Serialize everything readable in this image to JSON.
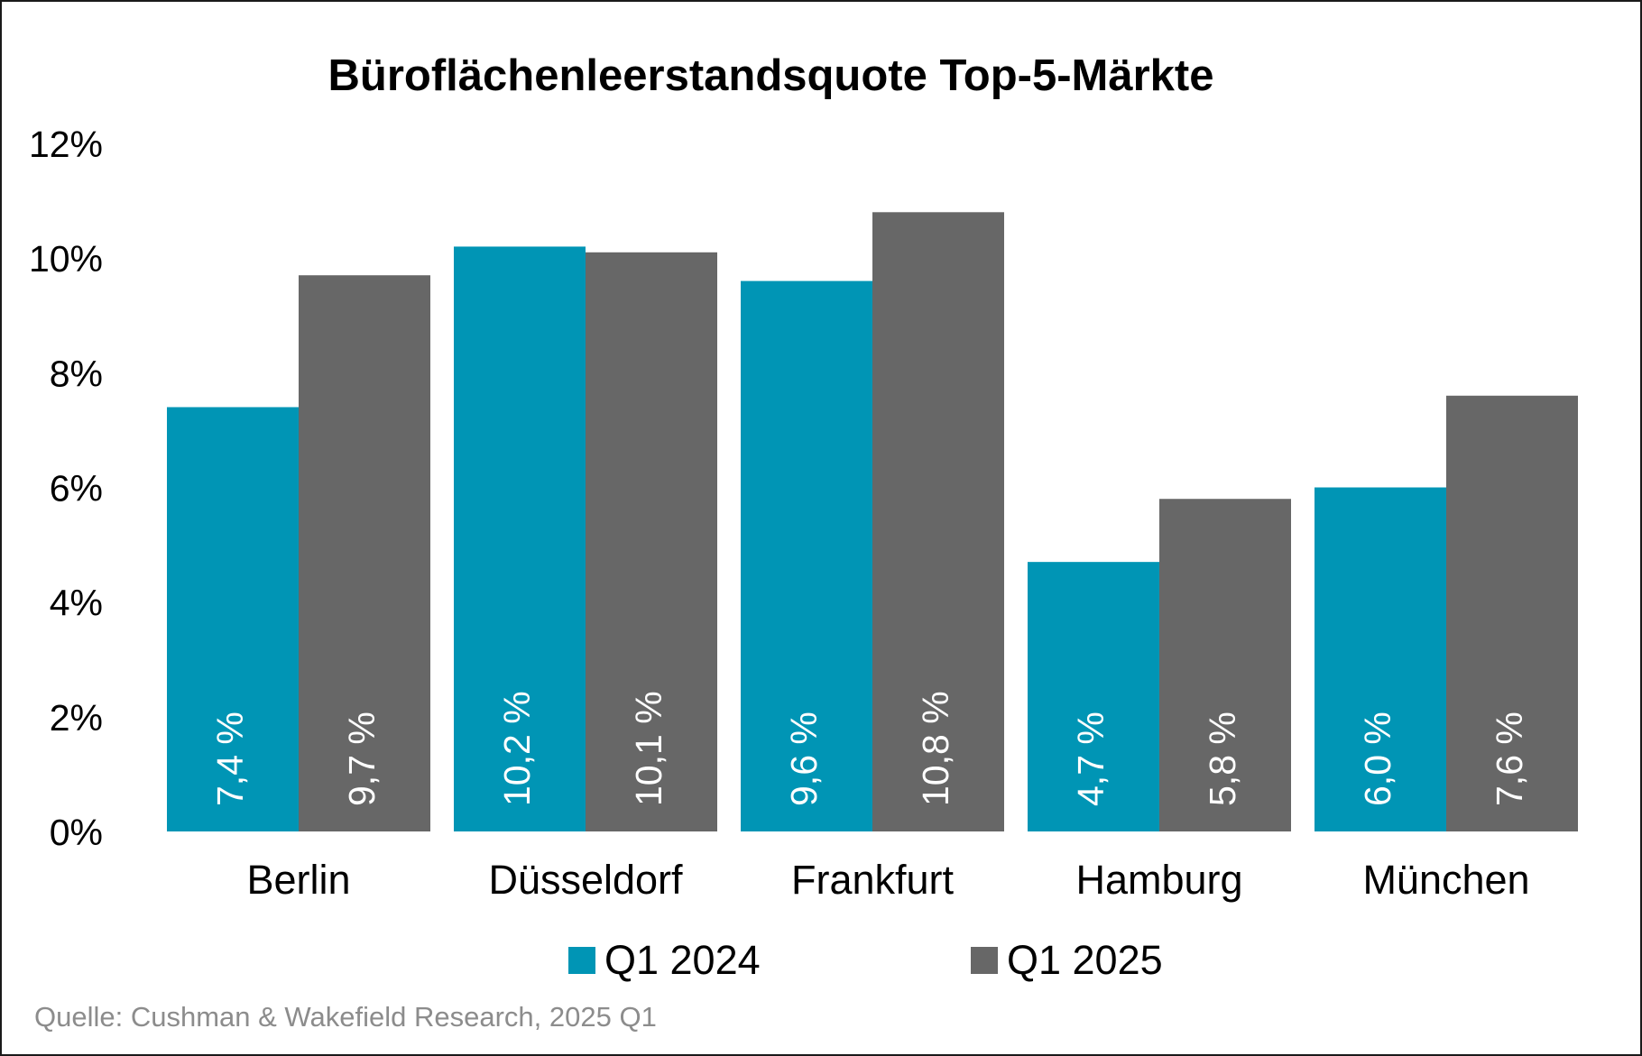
{
  "chart_data": {
    "type": "bar",
    "title": "Büroflächenleerstandsquote Top-5-Märkte",
    "xlabel": "",
    "ylabel": "",
    "ylim": [
      0,
      12
    ],
    "yticks": [
      "0%",
      "2%",
      "4%",
      "6%",
      "8%",
      "10%",
      "12%"
    ],
    "categories": [
      "Berlin",
      "Düsseldorf",
      "Frankfurt",
      "Hamburg",
      "München"
    ],
    "series": [
      {
        "name": "Q1 2024",
        "color": "#0095B5",
        "values": [
          7.4,
          10.2,
          9.6,
          4.7,
          6.0
        ],
        "labels": [
          "7,4 %",
          "10,2 %",
          "9,6 %",
          "4,7 %",
          "6,0 %"
        ]
      },
      {
        "name": "Q1 2025",
        "color": "#676767",
        "values": [
          9.7,
          10.1,
          10.8,
          5.8,
          7.6
        ],
        "labels": [
          "9,7 %",
          "10,1 %",
          "10,8 %",
          "5,8 %",
          "7,6 %"
        ]
      }
    ],
    "grid": false,
    "legend_position": "bottom",
    "source": "Quelle: Cushman & Wakefield Research, 2025 Q1"
  }
}
